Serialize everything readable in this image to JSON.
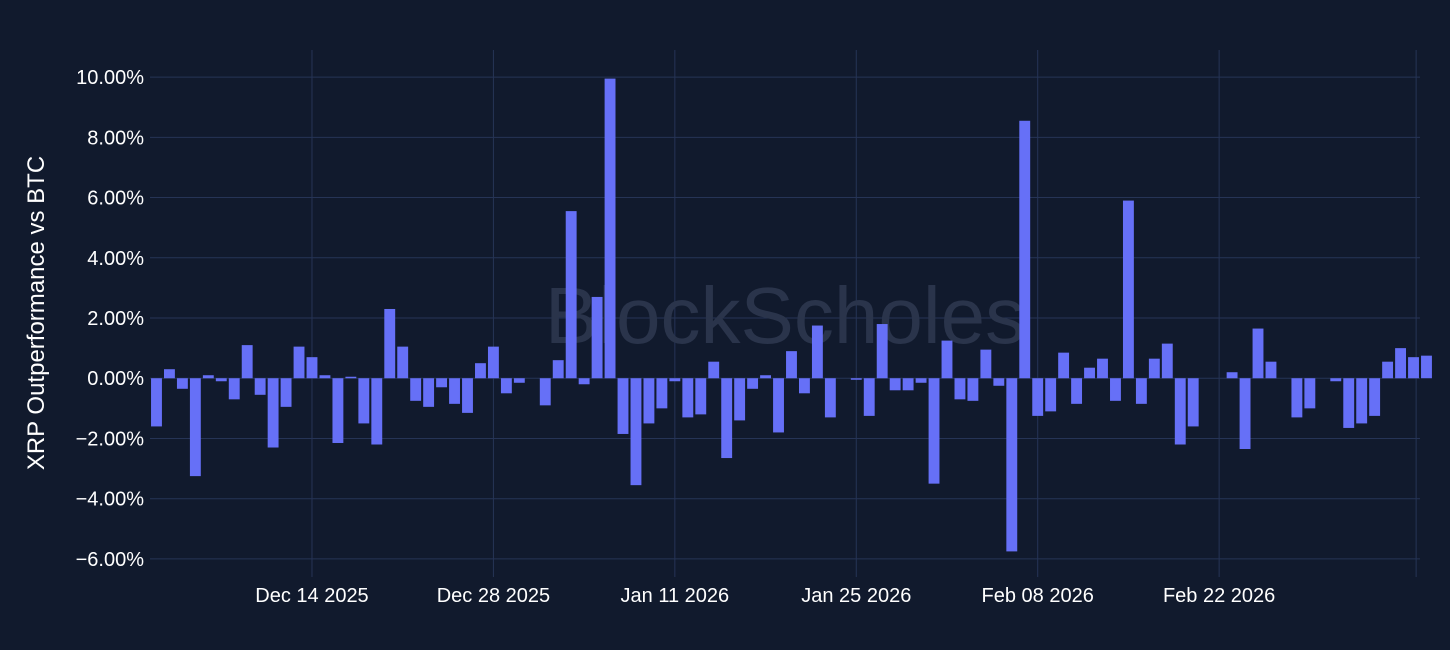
{
  "chart_data": {
    "type": "bar",
    "title": "",
    "xlabel": "",
    "ylabel": "XRP Outperformance vs BTC",
    "ylim": [
      -6.6,
      10.9
    ],
    "y_ticks": [
      -6,
      -4,
      -2,
      0,
      2,
      4,
      6,
      8,
      10
    ],
    "y_tick_labels": [
      "−6.00%",
      "−4.00%",
      "−2.00%",
      "0.00%",
      "2.00%",
      "4.00%",
      "6.00%",
      "8.00%",
      "10.00%"
    ],
    "x_range_days": [
      -12.5,
      85.5
    ],
    "x_ticks": [
      0,
      14,
      28,
      42,
      56,
      70
    ],
    "x_tick_labels": [
      "Dec 14 2025",
      "Dec 28 2025",
      "Jan 11 2026",
      "Jan 25 2026",
      "Feb 08 2026",
      "Feb 22 2026"
    ],
    "start_date": "Dec 2 2025",
    "values": [
      -1.6,
      0.3,
      -0.35,
      -3.25,
      0.1,
      -0.1,
      -0.7,
      1.1,
      -0.55,
      -2.3,
      -0.95,
      1.05,
      0.7,
      0.1,
      -2.15,
      0.05,
      -1.5,
      -2.2,
      2.3,
      1.05,
      -0.75,
      -0.95,
      -0.3,
      -0.85,
      -1.15,
      0.5,
      1.05,
      -0.5,
      -0.15,
      0.0,
      -0.9,
      0.6,
      5.55,
      -0.2,
      2.7,
      9.95,
      -1.85,
      -3.55,
      -1.5,
      -1.0,
      -0.1,
      -1.3,
      -1.2,
      0.55,
      -2.65,
      -1.4,
      -0.35,
      0.1,
      -1.8,
      0.9,
      -0.5,
      1.75,
      -1.3,
      0.0,
      -0.05,
      -1.25,
      1.8,
      -0.4,
      -0.4,
      -0.15,
      -3.5,
      1.25,
      -0.7,
      -0.75,
      0.95,
      -0.25,
      -5.75,
      8.55,
      -1.25,
      -1.1,
      0.85,
      -0.85,
      0.35,
      0.65,
      -0.75,
      5.9,
      -0.85,
      0.65,
      1.15,
      -2.2,
      -1.6,
      0.0,
      0.0,
      0.2,
      -2.35,
      1.65,
      0.55,
      0.0,
      -1.3,
      -1.0,
      0.0,
      -0.1,
      -1.65,
      -1.5,
      -1.25,
      0.55,
      1.0,
      0.7,
      0.75
    ],
    "grid": true,
    "legend": "none",
    "watermark": "BlockScholes",
    "colors": {
      "bar": "#6670f7",
      "background": "#111a2d",
      "grid": "#263456",
      "text": "#ffffff",
      "watermark": "#2a344b"
    }
  }
}
